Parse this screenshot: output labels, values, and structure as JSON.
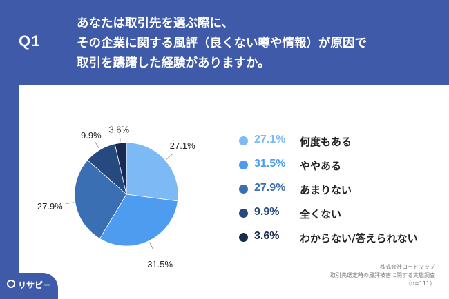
{
  "question": {
    "label": "Q1",
    "lines": [
      "あなたは取引先を選ぶ際に、",
      "その企業に関する風評（良くない噂や情報）が原因で",
      "取引を躊躇した経験がありますか。"
    ]
  },
  "chart_data": {
    "type": "pie",
    "categories": [
      "何度もある",
      "ややある",
      "あまりない",
      "全くない",
      "わからない/答えられない"
    ],
    "values": [
      27.1,
      31.5,
      27.9,
      9.9,
      3.6
    ],
    "data_labels": [
      "27.1%",
      "31.5%",
      "27.9%",
      "9.9%",
      "3.6%"
    ],
    "colors": [
      "#7cb9f5",
      "#4d9cf0",
      "#3a6fb4",
      "#264a80",
      "#182a52"
    ],
    "start": "12 o'clock, clockwise",
    "legend_placement": "right"
  },
  "legend": [
    {
      "pct": "27.1%",
      "name": "何度もある"
    },
    {
      "pct": "31.5%",
      "name": "ややある"
    },
    {
      "pct": "27.9%",
      "name": "あまりない"
    },
    {
      "pct": "9.9%",
      "name": "全くない"
    },
    {
      "pct": "3.6%",
      "name": "わからない/答えられない"
    }
  ],
  "credit": {
    "company": "株式会社ロードマップ",
    "survey": "取引先選定時の風評被害に関する実態調査",
    "n": "（n=111）"
  },
  "logo": {
    "text": "リサピー"
  }
}
